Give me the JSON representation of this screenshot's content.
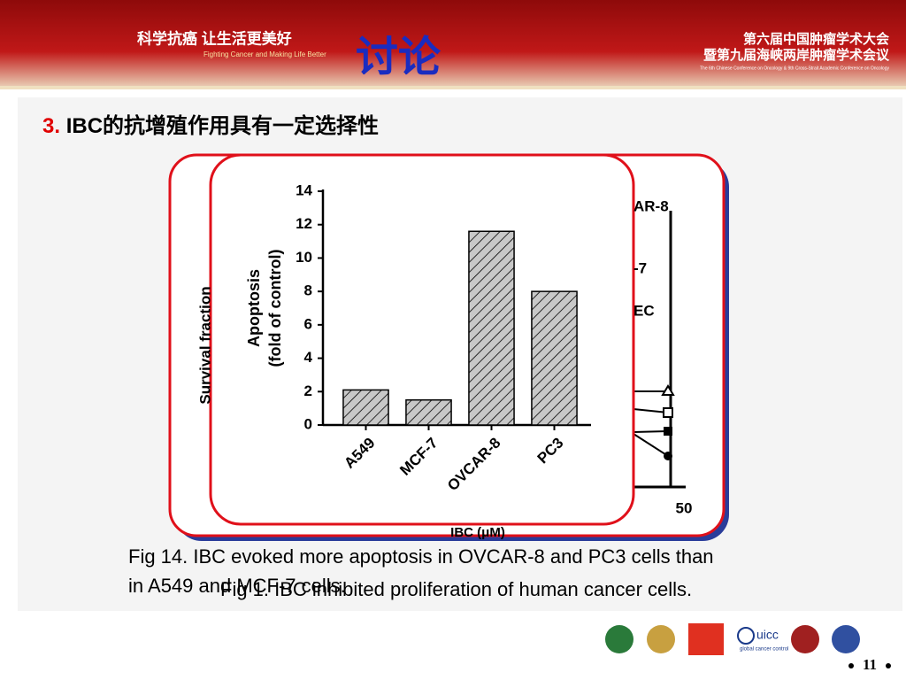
{
  "header": {
    "slogan": "科学抗癌 让生活更美好",
    "slogan_en": "Fighting Cancer and Making Life Better",
    "title": "讨论",
    "conference_1": "第六届中国肿瘤学术大会",
    "conference_2": "暨第九届海峡两岸肿瘤学术会议",
    "conference_en": "The 6th Chinese Conference on Oncology & 9th Cross-Strait Academic Conference on Oncology"
  },
  "heading": {
    "number": "3.",
    "text": "IBC的抗增殖作用具有一定选择性"
  },
  "back_figure": {
    "y_label": "Survival fraction",
    "legend_fragments": [
      "AR-8",
      "-7",
      "EC"
    ],
    "x_tick": "50",
    "x_label": "IBC (μM)"
  },
  "chart_data": {
    "type": "bar",
    "y_label": [
      "Apoptosis",
      "(fold of control)"
    ],
    "categories": [
      "A549",
      "MCF-7",
      "OVCAR-8",
      "PC3"
    ],
    "values": [
      2.1,
      1.5,
      11.6,
      8.0
    ],
    "color": "#c8c8c8",
    "hatch": true,
    "ylim": [
      0,
      14
    ],
    "yticks": [
      0,
      2,
      4,
      6,
      8,
      10,
      12,
      14
    ]
  },
  "captions": [
    "Fig 14. IBC evoked more apoptosis in OVCAR-8 and PC3 cells than in A549 and MCF-7 cells.",
    "Fig 1.  IBC inhibited proliferation of human cancer cells."
  ],
  "logos": {
    "uicc": "uicc",
    "uicc_sub": "global cancer control"
  },
  "page_number": "11"
}
